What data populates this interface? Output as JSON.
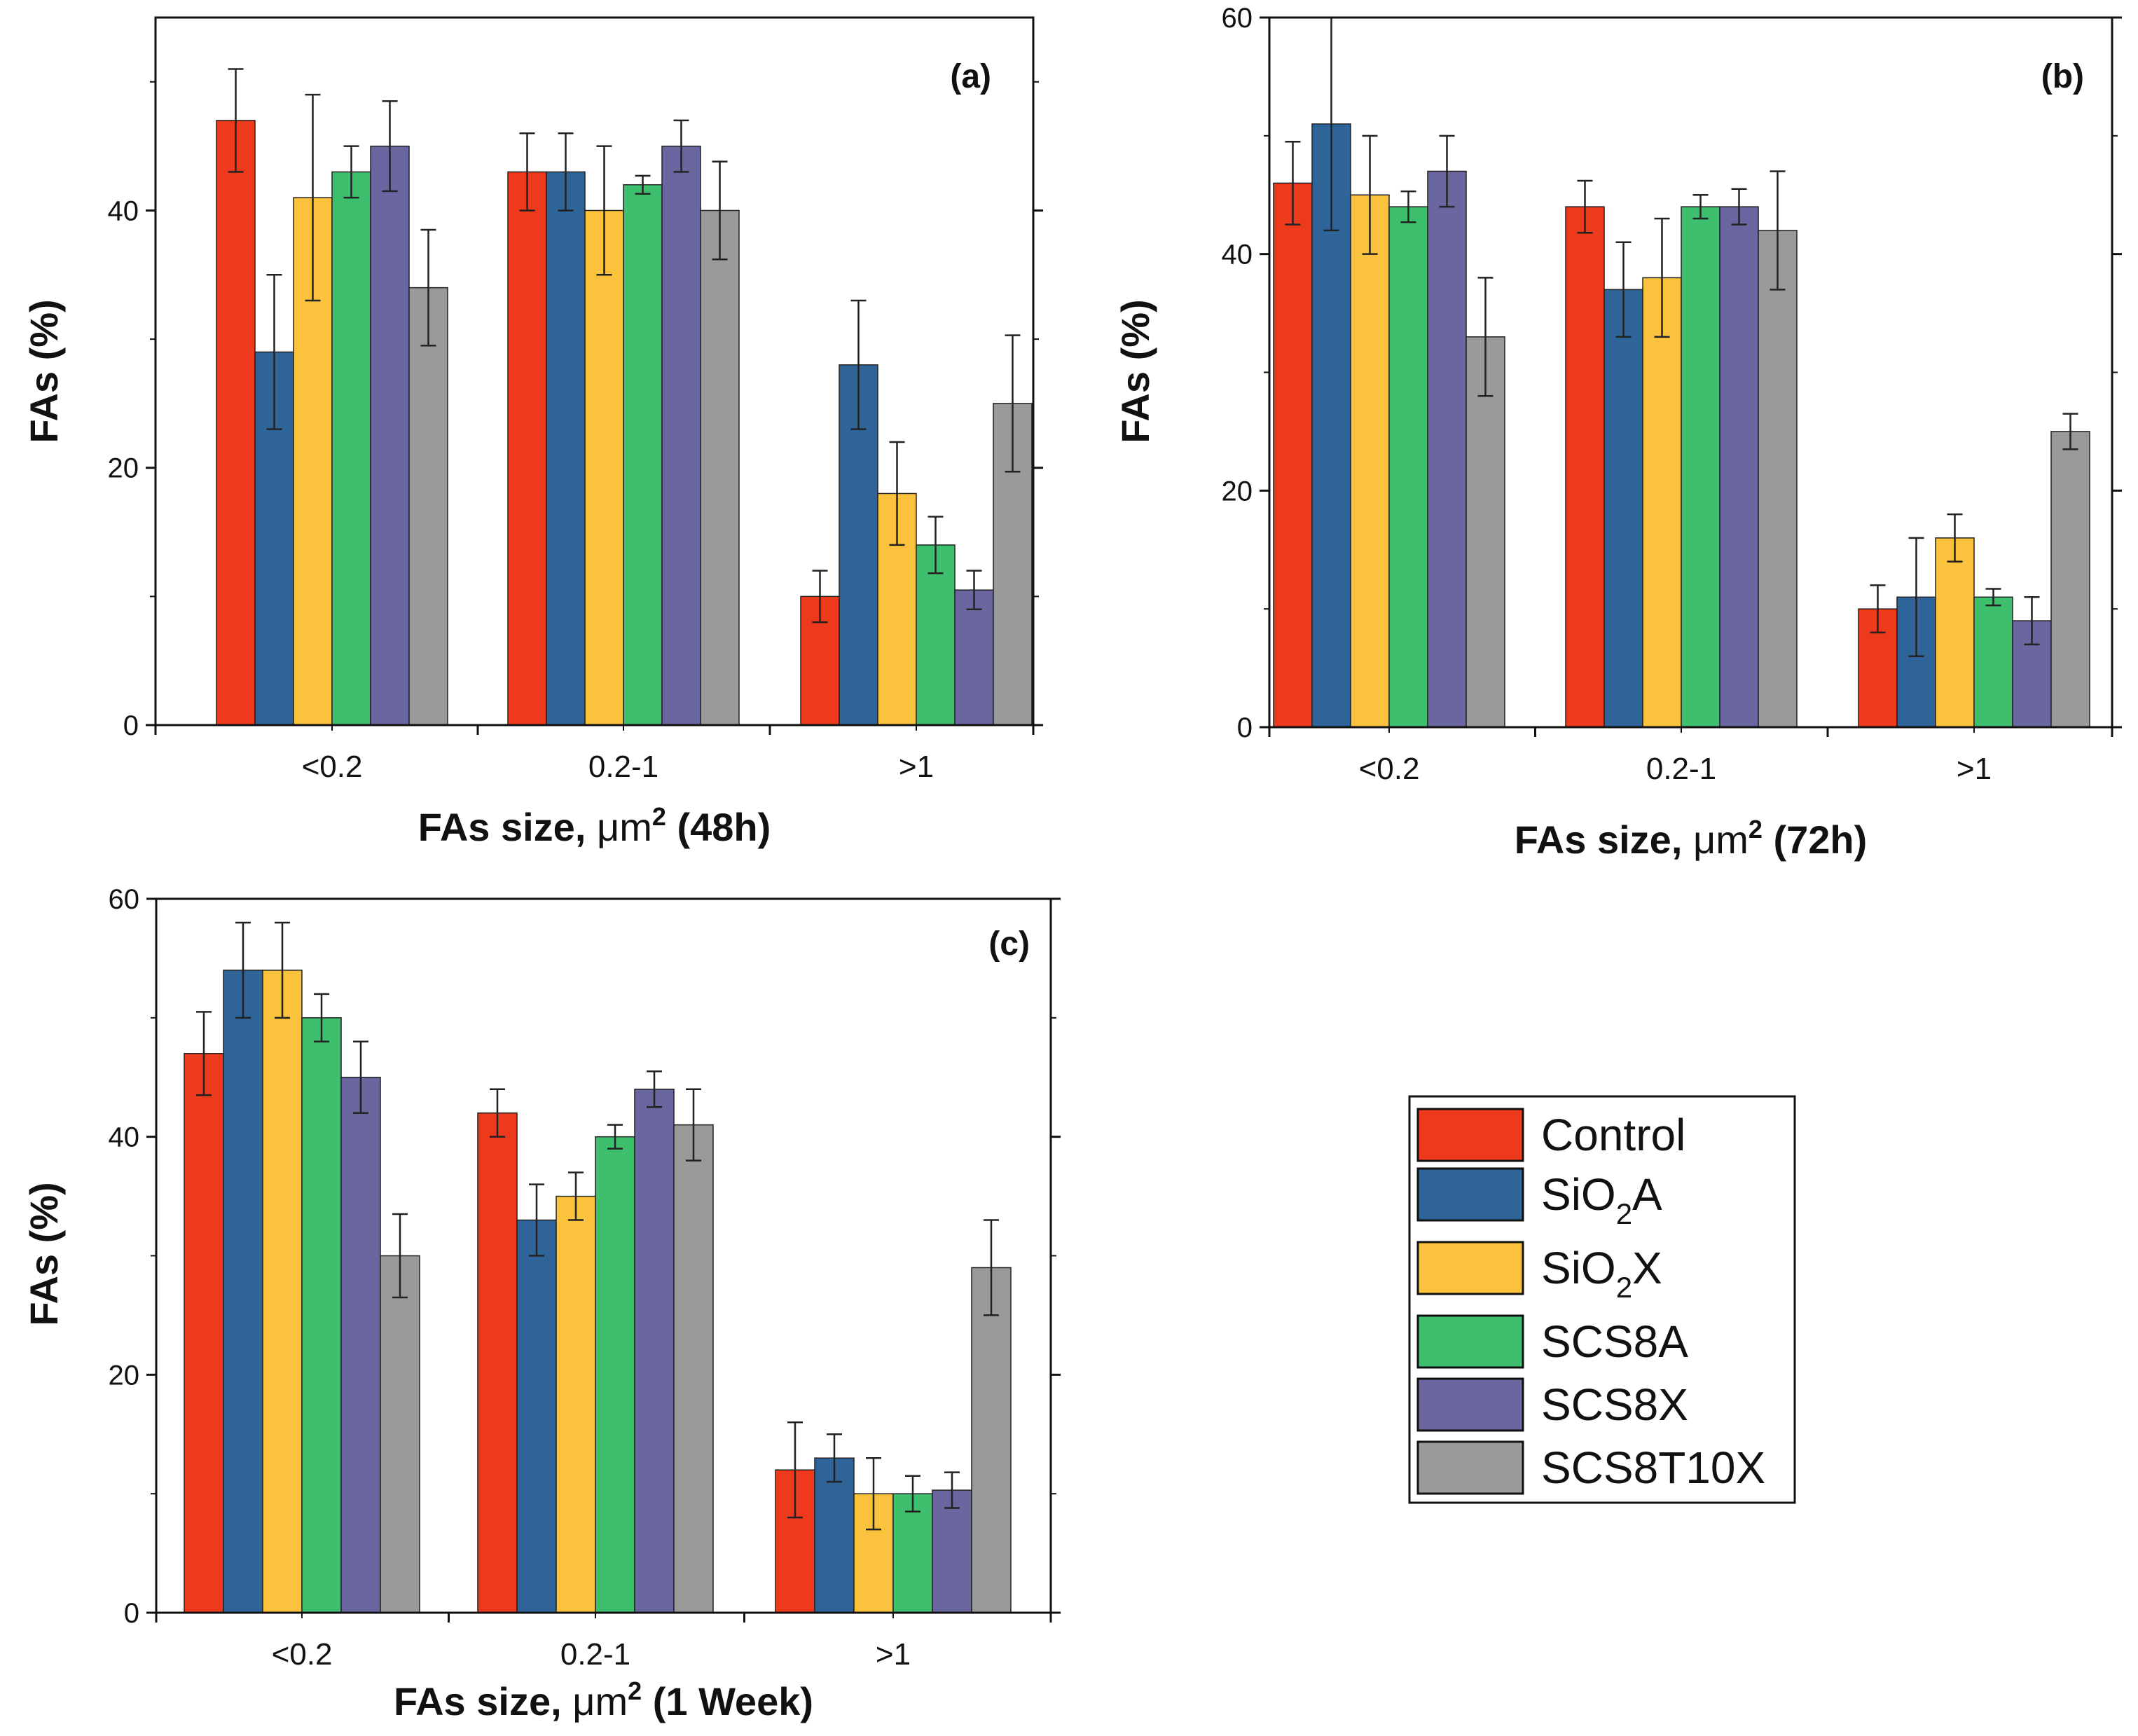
{
  "figure": {
    "legend": [
      {
        "key": "Control",
        "text": "Control",
        "sub": "",
        "after": ""
      },
      {
        "key": "SiO2A",
        "text": "SiO",
        "sub": "2",
        "after": "A"
      },
      {
        "key": "SiO2X",
        "text": "SiO",
        "sub": "2",
        "after": "X"
      },
      {
        "key": "SCS8A",
        "text": "SCS8A",
        "sub": "",
        "after": ""
      },
      {
        "key": "SCS8X",
        "text": "SCS8X",
        "sub": "",
        "after": ""
      },
      {
        "key": "SCS8T10X",
        "text": "SCS8T10X",
        "sub": "",
        "after": ""
      }
    ],
    "colors": [
      "#EE3A1C",
      "#2F6499",
      "#FBC23D",
      "#3DBF6E",
      "#6A66A0",
      "#9A9A9A"
    ]
  },
  "chart_data": [
    {
      "type": "bar",
      "panel": "(a)",
      "title": "",
      "xlabel": {
        "prefix": "FAs size, ",
        "unit": "μm",
        "sup": "2",
        "suffix": " (48h)"
      },
      "ylabel": "FAs (%)",
      "ylim": [
        0,
        55
      ],
      "yticks": [
        0,
        20,
        40
      ],
      "categories": [
        "<0.2",
        "0.2-1",
        ">1"
      ],
      "series": [
        {
          "name": "Control",
          "values": [
            47,
            43,
            10
          ],
          "errors": [
            4,
            3,
            2
          ]
        },
        {
          "name": "SiO2A",
          "values": [
            29,
            43,
            28
          ],
          "errors": [
            6,
            3,
            5
          ]
        },
        {
          "name": "SiO2X",
          "values": [
            41,
            40,
            18
          ],
          "errors": [
            8,
            5,
            4
          ]
        },
        {
          "name": "SCS8A",
          "values": [
            43,
            42,
            14
          ],
          "errors": [
            2,
            0.7,
            2.2
          ]
        },
        {
          "name": "SCS8X",
          "values": [
            45,
            45,
            10.5
          ],
          "errors": [
            3.5,
            2,
            1.5
          ]
        },
        {
          "name": "SCS8T10X",
          "values": [
            34,
            40,
            25
          ],
          "errors": [
            4.5,
            3.8,
            5.3
          ]
        }
      ]
    },
    {
      "type": "bar",
      "panel": "(b)",
      "title": "",
      "xlabel": {
        "prefix": "FAs size, ",
        "unit": "μm",
        "sup": "2",
        "suffix": " (72h)"
      },
      "ylabel": "FAs (%)",
      "ylim": [
        0,
        60
      ],
      "yticks": [
        0,
        20,
        40,
        60
      ],
      "categories": [
        "<0.2",
        "0.2-1",
        ">1"
      ],
      "series": [
        {
          "name": "Control",
          "values": [
            46,
            44,
            10
          ],
          "errors": [
            3.5,
            2.2,
            2
          ]
        },
        {
          "name": "SiO2A",
          "values": [
            51,
            37,
            11
          ],
          "errors": [
            9,
            4,
            5
          ]
        },
        {
          "name": "SiO2X",
          "values": [
            45,
            38,
            16
          ],
          "errors": [
            5,
            5,
            2
          ]
        },
        {
          "name": "SCS8A",
          "values": [
            44,
            44,
            11
          ],
          "errors": [
            1.3,
            1,
            0.7
          ]
        },
        {
          "name": "SCS8X",
          "values": [
            47,
            44,
            9
          ],
          "errors": [
            3,
            1.5,
            2
          ]
        },
        {
          "name": "SCS8T10X",
          "values": [
            33,
            42,
            25
          ],
          "errors": [
            5,
            5,
            1.5
          ]
        }
      ]
    },
    {
      "type": "bar",
      "panel": "(c)",
      "title": "",
      "xlabel": {
        "prefix": "FAs size, ",
        "unit": "μm",
        "sup": "2",
        "suffix": " (1 Week)"
      },
      "ylabel": "FAs (%)",
      "ylim": [
        0,
        60
      ],
      "yticks": [
        0,
        20,
        40,
        60
      ],
      "categories": [
        "<0.2",
        "0.2-1",
        ">1"
      ],
      "series": [
        {
          "name": "Control",
          "values": [
            47,
            42,
            12
          ],
          "errors": [
            3.5,
            2,
            4
          ]
        },
        {
          "name": "SiO2A",
          "values": [
            54,
            33,
            13
          ],
          "errors": [
            4,
            3,
            2
          ]
        },
        {
          "name": "SiO2X",
          "values": [
            54,
            35,
            10
          ],
          "errors": [
            4,
            2,
            3
          ]
        },
        {
          "name": "SCS8A",
          "values": [
            50,
            40,
            10
          ],
          "errors": [
            2,
            1,
            1.5
          ]
        },
        {
          "name": "SCS8X",
          "values": [
            45,
            44,
            10.3
          ],
          "errors": [
            3,
            1.5,
            1.5
          ]
        },
        {
          "name": "SCS8T10X",
          "values": [
            30,
            41,
            29
          ],
          "errors": [
            3.5,
            3,
            4
          ]
        }
      ]
    }
  ]
}
